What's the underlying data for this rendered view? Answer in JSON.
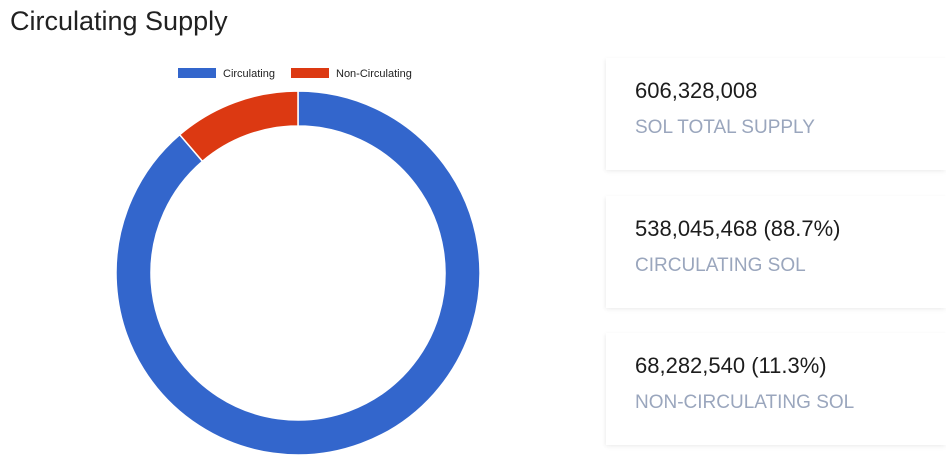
{
  "page": {
    "title": "Circulating Supply"
  },
  "colors": {
    "circulating": "#3366cc",
    "non_circulating": "#dc3912",
    "label": "#9aa6bd"
  },
  "stats": [
    {
      "value": "606,328,008",
      "label": "SOL TOTAL SUPPLY"
    },
    {
      "value": "538,045,468 (88.7%)",
      "label": "CIRCULATING SOL"
    },
    {
      "value": "68,282,540 (11.3%)",
      "label": "NON-CIRCULATING SOL"
    }
  ],
  "chart_data": {
    "type": "pie",
    "variant": "donut",
    "legend_position": "top",
    "series": [
      {
        "name": "Circulating",
        "value": 538045468,
        "color": "#3366cc"
      },
      {
        "name": "Non-Circulating",
        "value": 68282540,
        "color": "#dc3912"
      }
    ]
  }
}
